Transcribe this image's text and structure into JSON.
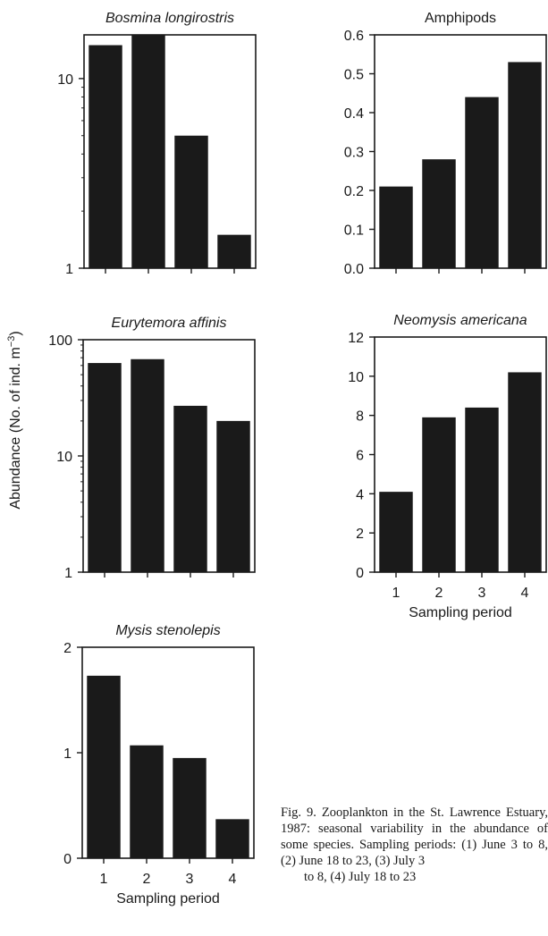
{
  "y_axis_label": "Abundance (No. of ind. m",
  "y_axis_label_sup": "−3",
  "y_axis_label_end": ")",
  "caption": {
    "part1": "Fig. 9. Zooplankton in the St. Lawrence Estuary, 1987: seasonal variability in the abundance of some species. Sampling periods: (1) June 3 to 8, (2) June 18 to 23, (3) July 3",
    "part2": "to 8, (4) July 18 to 23"
  },
  "chart_data": [
    {
      "type": "bar",
      "title": "Bosmina longirostris",
      "categories": [
        "1",
        "2",
        "3",
        "4"
      ],
      "values": [
        15,
        17,
        5,
        1.5
      ],
      "ylim": [
        1,
        17
      ],
      "yscale": "log",
      "yticks": [
        1,
        10
      ],
      "show_xtick_labels": false,
      "xlabel": ""
    },
    {
      "type": "bar",
      "title": "Amphipods",
      "categories": [
        "1",
        "2",
        "3",
        "4"
      ],
      "values": [
        0.21,
        0.28,
        0.44,
        0.53
      ],
      "ylim": [
        0,
        0.6
      ],
      "yscale": "linear",
      "yticks": [
        0.0,
        0.1,
        0.2,
        0.3,
        0.4,
        0.5,
        0.6
      ],
      "ytick_labels": [
        "0.0",
        "0.1",
        "0.2",
        "0.3",
        "0.4",
        "0.5",
        "0.6"
      ],
      "show_xtick_labels": false,
      "xlabel": ""
    },
    {
      "type": "bar",
      "title": "Eurytemora affinis",
      "categories": [
        "1",
        "2",
        "3",
        "4"
      ],
      "values": [
        63,
        68,
        27,
        20
      ],
      "ylim": [
        1,
        100
      ],
      "yscale": "log",
      "yticks": [
        1,
        10,
        100
      ],
      "show_xtick_labels": false,
      "xlabel": ""
    },
    {
      "type": "bar",
      "title": "Neomysis americana",
      "categories": [
        "1",
        "2",
        "3",
        "4"
      ],
      "values": [
        4.1,
        7.9,
        8.4,
        10.2
      ],
      "ylim": [
        0,
        12
      ],
      "yscale": "linear",
      "yticks": [
        0,
        2,
        4,
        6,
        8,
        10,
        12
      ],
      "show_xtick_labels": true,
      "xlabel": "Sampling period"
    },
    {
      "type": "bar",
      "title": "Mysis stenolepis",
      "categories": [
        "1",
        "2",
        "3",
        "4"
      ],
      "values": [
        1.73,
        1.07,
        0.95,
        0.37
      ],
      "ylim": [
        0,
        2
      ],
      "yscale": "linear",
      "yticks": [
        0,
        1,
        2
      ],
      "show_xtick_labels": true,
      "xlabel": "Sampling period"
    }
  ]
}
